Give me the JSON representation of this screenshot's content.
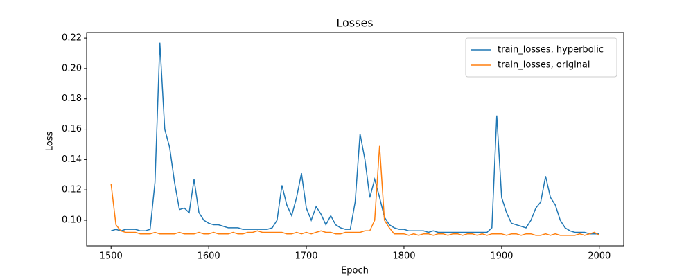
{
  "chart_data": {
    "type": "line",
    "title": "Losses",
    "x_label": "Epoch",
    "y_label": "Loss",
    "x": [
      1500,
      1505,
      1510,
      1515,
      1520,
      1525,
      1530,
      1535,
      1540,
      1545,
      1550,
      1555,
      1560,
      1565,
      1570,
      1575,
      1580,
      1585,
      1590,
      1595,
      1600,
      1605,
      1610,
      1615,
      1620,
      1625,
      1630,
      1635,
      1640,
      1645,
      1650,
      1655,
      1660,
      1665,
      1670,
      1675,
      1680,
      1685,
      1690,
      1695,
      1700,
      1705,
      1710,
      1715,
      1720,
      1725,
      1730,
      1735,
      1740,
      1745,
      1750,
      1755,
      1760,
      1765,
      1770,
      1775,
      1780,
      1785,
      1790,
      1795,
      1800,
      1805,
      1810,
      1815,
      1820,
      1825,
      1830,
      1835,
      1840,
      1845,
      1850,
      1855,
      1860,
      1865,
      1870,
      1875,
      1880,
      1885,
      1890,
      1895,
      1900,
      1905,
      1910,
      1915,
      1920,
      1925,
      1930,
      1935,
      1940,
      1945,
      1950,
      1955,
      1960,
      1965,
      1970,
      1975,
      1980,
      1985,
      1990,
      1995,
      2000
    ],
    "series": [
      {
        "name": "train_losses, hyperbolic",
        "color": "#1f77b4",
        "values": [
          0.093,
          0.094,
          0.093,
          0.094,
          0.094,
          0.094,
          0.093,
          0.093,
          0.094,
          0.125,
          0.217,
          0.16,
          0.148,
          0.125,
          0.107,
          0.108,
          0.105,
          0.127,
          0.105,
          0.1,
          0.098,
          0.097,
          0.097,
          0.096,
          0.095,
          0.095,
          0.095,
          0.094,
          0.094,
          0.094,
          0.094,
          0.094,
          0.094,
          0.095,
          0.1,
          0.123,
          0.11,
          0.103,
          0.115,
          0.131,
          0.108,
          0.1,
          0.109,
          0.104,
          0.097,
          0.103,
          0.097,
          0.095,
          0.094,
          0.094,
          0.112,
          0.157,
          0.14,
          0.115,
          0.127,
          0.115,
          0.102,
          0.097,
          0.095,
          0.094,
          0.094,
          0.093,
          0.093,
          0.093,
          0.093,
          0.092,
          0.093,
          0.092,
          0.092,
          0.092,
          0.092,
          0.092,
          0.092,
          0.092,
          0.092,
          0.092,
          0.092,
          0.092,
          0.095,
          0.169,
          0.115,
          0.105,
          0.098,
          0.097,
          0.096,
          0.095,
          0.1,
          0.108,
          0.112,
          0.129,
          0.115,
          0.11,
          0.1,
          0.095,
          0.093,
          0.092,
          0.092,
          0.092,
          0.091,
          0.091,
          0.091
        ]
      },
      {
        "name": "train_losses, original",
        "color": "#ff7f0e",
        "values": [
          0.124,
          0.097,
          0.093,
          0.092,
          0.092,
          0.092,
          0.091,
          0.091,
          0.091,
          0.092,
          0.091,
          0.091,
          0.091,
          0.091,
          0.092,
          0.091,
          0.091,
          0.091,
          0.092,
          0.091,
          0.091,
          0.092,
          0.091,
          0.091,
          0.091,
          0.092,
          0.091,
          0.091,
          0.092,
          0.092,
          0.093,
          0.092,
          0.092,
          0.092,
          0.092,
          0.092,
          0.091,
          0.091,
          0.092,
          0.091,
          0.092,
          0.091,
          0.092,
          0.093,
          0.092,
          0.092,
          0.091,
          0.091,
          0.092,
          0.092,
          0.092,
          0.092,
          0.093,
          0.093,
          0.1,
          0.149,
          0.1,
          0.095,
          0.091,
          0.091,
          0.091,
          0.09,
          0.091,
          0.09,
          0.091,
          0.091,
          0.09,
          0.091,
          0.091,
          0.09,
          0.091,
          0.091,
          0.09,
          0.091,
          0.091,
          0.09,
          0.091,
          0.09,
          0.091,
          0.091,
          0.091,
          0.09,
          0.091,
          0.091,
          0.09,
          0.091,
          0.091,
          0.09,
          0.09,
          0.091,
          0.09,
          0.091,
          0.09,
          0.09,
          0.09,
          0.09,
          0.091,
          0.09,
          0.091,
          0.092,
          0.09
        ]
      }
    ],
    "xlim": [
      1475,
      2025
    ],
    "ylim": [
      0.0831,
      0.2237
    ],
    "xticks": [
      1500,
      1600,
      1700,
      1800,
      1900,
      2000
    ],
    "yticks": [
      {
        "value": 0.1,
        "label": "0.10"
      },
      0.12,
      0.14,
      0.16,
      0.18,
      {
        "value": 0.2,
        "label": "0.20"
      },
      0.22
    ],
    "legend": "upper right"
  }
}
